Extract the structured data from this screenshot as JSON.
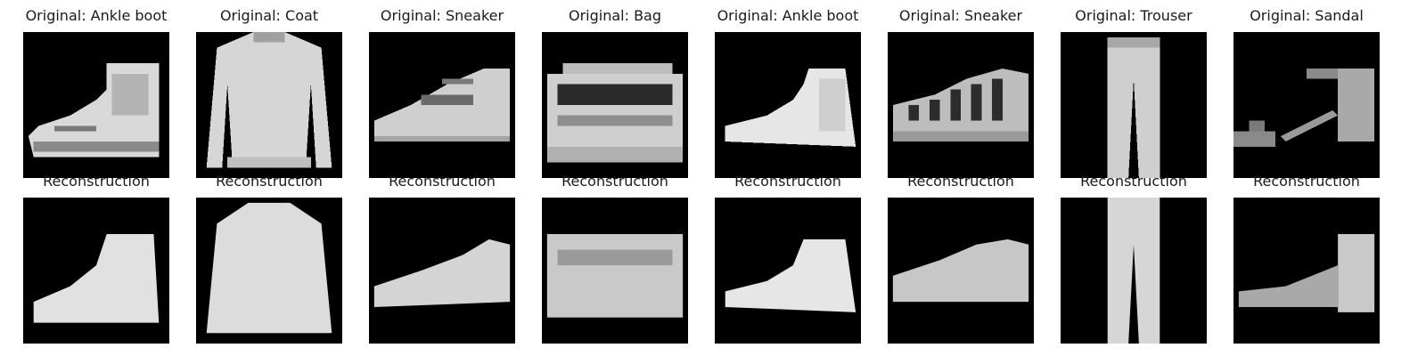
{
  "rows": [
    {
      "row": "original",
      "panels": [
        {
          "title": "Original: Ankle boot",
          "item": "ankle-boot"
        },
        {
          "title": "Original: Coat",
          "item": "coat"
        },
        {
          "title": "Original: Sneaker",
          "item": "sneaker"
        },
        {
          "title": "Original: Bag",
          "item": "bag"
        },
        {
          "title": "Original: Ankle boot",
          "item": "ankle-boot-2"
        },
        {
          "title": "Original: Sneaker",
          "item": "sneaker-2"
        },
        {
          "title": "Original: Trouser",
          "item": "trouser"
        },
        {
          "title": "Original: Sandal",
          "item": "sandal"
        }
      ]
    },
    {
      "row": "reconstruction",
      "panels": [
        {
          "title": "Reconstruction",
          "item": "ankle-boot"
        },
        {
          "title": "Reconstruction",
          "item": "coat"
        },
        {
          "title": "Reconstruction",
          "item": "sneaker"
        },
        {
          "title": "Reconstruction",
          "item": "bag"
        },
        {
          "title": "Reconstruction",
          "item": "ankle-boot-2"
        },
        {
          "title": "Reconstruction",
          "item": "sneaker-2"
        },
        {
          "title": "Reconstruction",
          "item": "trouser"
        },
        {
          "title": "Reconstruction",
          "item": "sandal"
        }
      ]
    }
  ],
  "colors": {
    "background": "#ffffff",
    "image_bg": "#000000",
    "foreground": "#e6e6e6",
    "title": "#1a1a1a"
  }
}
